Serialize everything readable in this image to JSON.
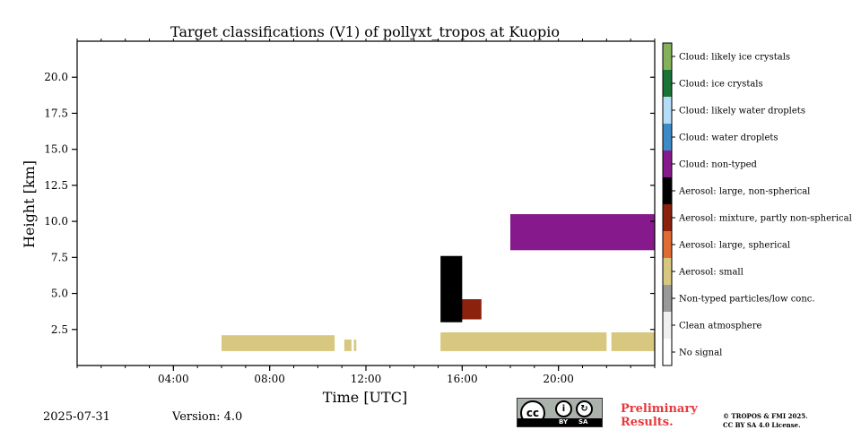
{
  "chart_data": {
    "type": "heatmap",
    "title": "Target classifications (V1) of pollyxt_tropos at Kuopio",
    "xlabel": "Time [UTC]",
    "ylabel": "Height [km]",
    "xlim": [
      0,
      24
    ],
    "ylim": [
      0,
      22.5
    ],
    "x_ticks": [
      {
        "value": 4,
        "label": "04:00"
      },
      {
        "value": 8,
        "label": "08:00"
      },
      {
        "value": 12,
        "label": "12:00"
      },
      {
        "value": 16,
        "label": "16:00"
      },
      {
        "value": 20,
        "label": "20:00"
      }
    ],
    "y_ticks": [
      {
        "value": 2.5,
        "label": "2.5"
      },
      {
        "value": 5,
        "label": "5.0"
      },
      {
        "value": 7.5,
        "label": "7.5"
      },
      {
        "value": 10,
        "label": "10.0"
      },
      {
        "value": 12.5,
        "label": "12.5"
      },
      {
        "value": 15,
        "label": "15.0"
      },
      {
        "value": 17.5,
        "label": "17.5"
      },
      {
        "value": 20,
        "label": "20.0"
      }
    ],
    "classes": [
      {
        "name": "No signal",
        "color": "#ffffff"
      },
      {
        "name": "Clean atmosphere",
        "color": "#f0f0f0"
      },
      {
        "name": "Non-typed particles/low conc.",
        "color": "#999999"
      },
      {
        "name": "Aerosol: small",
        "color": "#d8c77f"
      },
      {
        "name": "Aerosol: large, spherical",
        "color": "#e06b33"
      },
      {
        "name": "Aerosol: mixture, partly non-spherical",
        "color": "#8a220e"
      },
      {
        "name": "Aerosol: large, non-spherical",
        "color": "#000000"
      },
      {
        "name": "Cloud: non-typed",
        "color": "#86198c"
      },
      {
        "name": "Cloud: water droplets",
        "color": "#3e8ac6"
      },
      {
        "name": "Cloud: likely water droplets",
        "color": "#b6ddf7"
      },
      {
        "name": "Cloud: ice crystals",
        "color": "#1b7436"
      },
      {
        "name": "Cloud: likely ice crystals",
        "color": "#83b15c"
      }
    ],
    "regions": [
      {
        "class": "Aerosol: small",
        "t_start": 6.0,
        "t_end": 10.7,
        "h_start": 1.0,
        "h_end": 2.1
      },
      {
        "class": "Aerosol: small",
        "t_start": 11.1,
        "t_end": 11.4,
        "h_start": 1.0,
        "h_end": 1.8
      },
      {
        "class": "Aerosol: small",
        "t_start": 11.5,
        "t_end": 11.6,
        "h_start": 1.0,
        "h_end": 1.8
      },
      {
        "class": "Aerosol: small",
        "t_start": 15.1,
        "t_end": 22.0,
        "h_start": 1.0,
        "h_end": 2.3
      },
      {
        "class": "Aerosol: small",
        "t_start": 22.2,
        "t_end": 24.0,
        "h_start": 1.0,
        "h_end": 2.3
      },
      {
        "class": "Aerosol: mixture, partly non-spherical",
        "t_start": 15.9,
        "t_end": 16.8,
        "h_start": 3.2,
        "h_end": 4.6
      },
      {
        "class": "Aerosol: large, non-spherical",
        "t_start": 15.1,
        "t_end": 16.0,
        "h_start": 3.0,
        "h_end": 7.6
      },
      {
        "class": "Cloud: non-typed",
        "t_start": 18.0,
        "t_end": 24.0,
        "h_start": 8.0,
        "h_end": 10.5
      }
    ],
    "date": "2025-07-31",
    "version": "Version: 4.0"
  },
  "footer": {
    "license_by": "BY",
    "license_sa": "SA",
    "license_cc": "cc",
    "preliminary_line1": "Preliminary",
    "preliminary_line2": "Results.",
    "copyright_line1": "© TROPOS & FMI 2025.",
    "copyright_line2": "CC BY SA 4.0 License."
  }
}
